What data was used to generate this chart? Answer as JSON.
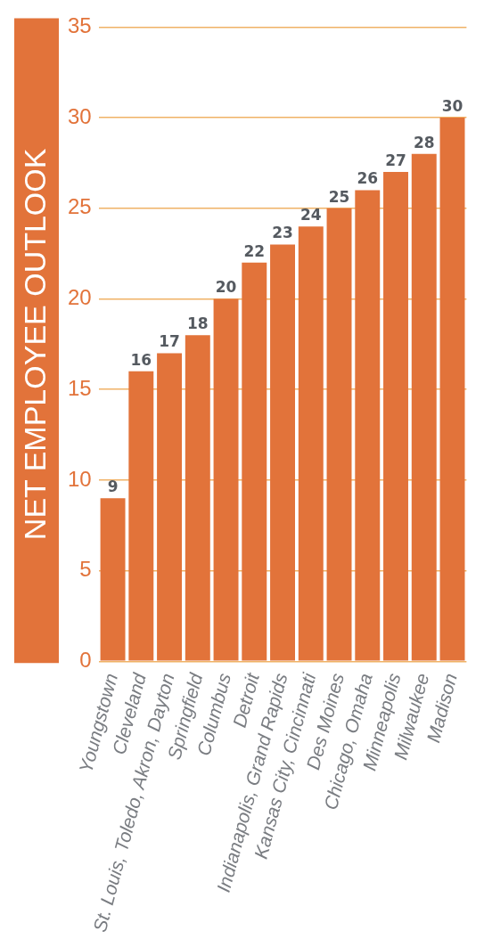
{
  "chart_data": {
    "type": "bar",
    "ylabel": "NET EMPLOYEE OUTLOOK",
    "categories": [
      "Youngstown",
      "Cleveland",
      "St. Louis, Toledo, Akron, Dayton",
      "Springfield",
      "Columbus",
      "Detroit",
      "Indianapolis, Grand Rapids",
      "Kansas City, Cincinnati",
      "Des Moines",
      "Chicago, Omaha",
      "Minneapolis",
      "Milwaukee",
      "Madison"
    ],
    "values": [
      9,
      16,
      17,
      18,
      20,
      22,
      23,
      24,
      25,
      26,
      27,
      28,
      30
    ],
    "color": "#e2733a",
    "ylim": [
      0,
      35
    ],
    "yticks": [
      0,
      5,
      10,
      15,
      20,
      25,
      30,
      35
    ],
    "grid": "y",
    "data_labels": true
  }
}
